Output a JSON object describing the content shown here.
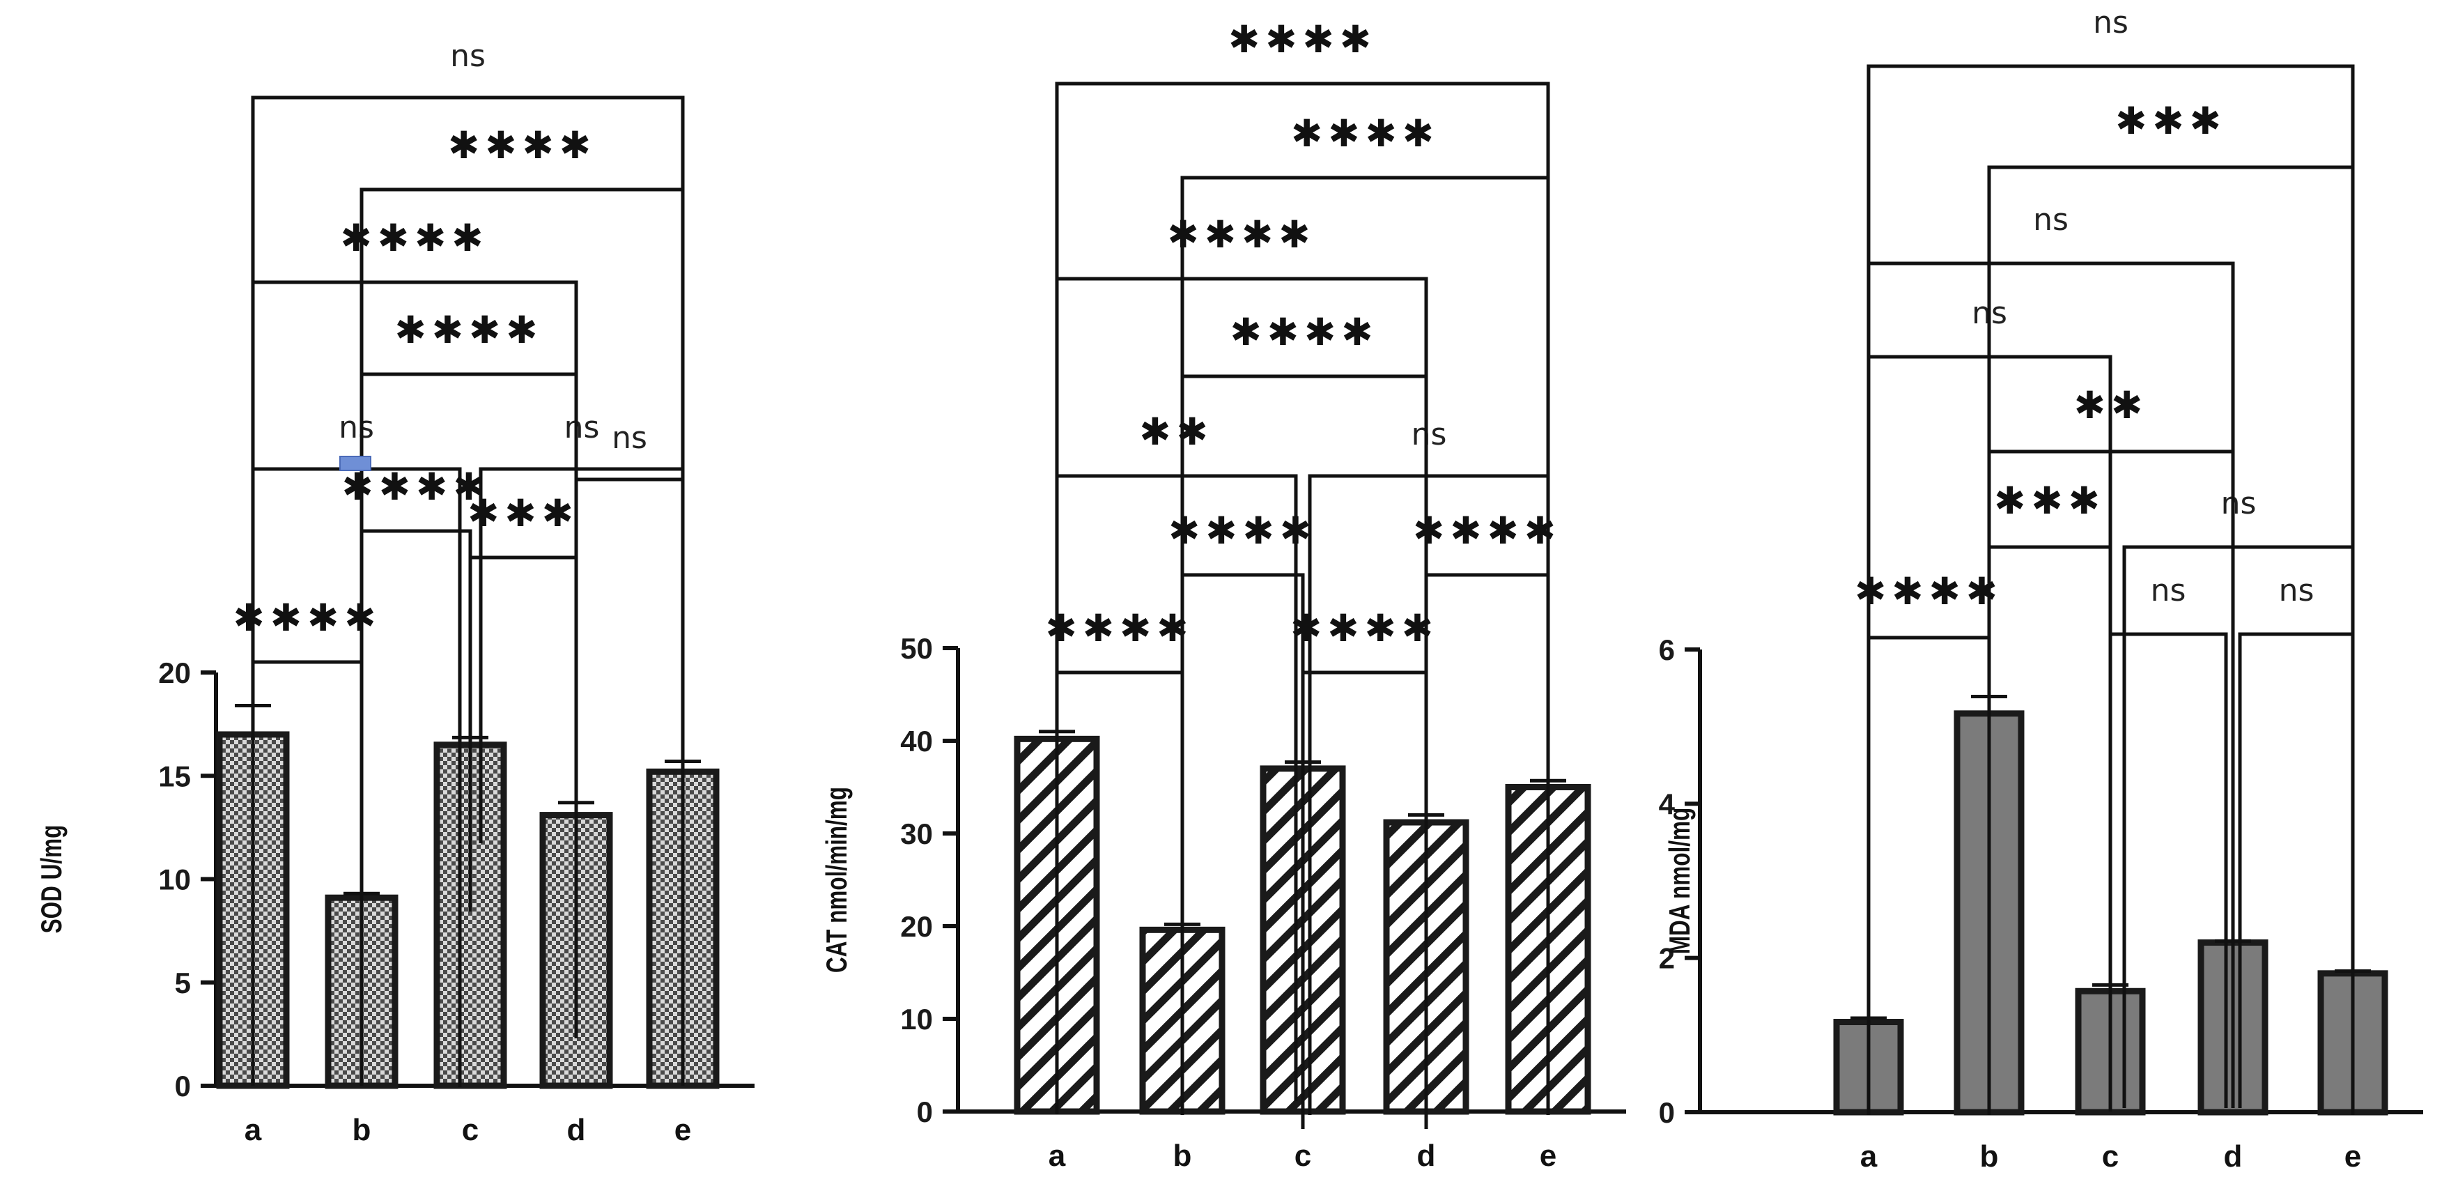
{
  "chart_data": [
    {
      "type": "bar",
      "panel": "SOD",
      "ylabel": "SOD U/mg",
      "categories": [
        "a",
        "b",
        "c",
        "d",
        "e"
      ],
      "values": [
        17.0,
        9.1,
        16.5,
        13.1,
        15.2
      ],
      "errors": [
        1.4,
        0.2,
        0.35,
        0.6,
        0.5
      ],
      "ylim": [
        0,
        20
      ],
      "yticks": [
        0,
        5,
        10,
        15,
        20
      ],
      "pattern": "checker",
      "comparisons": [
        {
          "from": "a",
          "to": "b",
          "label": "****"
        },
        {
          "from": "c",
          "to": "d",
          "label": "***"
        },
        {
          "from": "b",
          "to": "c",
          "label": "****"
        },
        {
          "from": "d",
          "to": "e",
          "label": "ns"
        },
        {
          "from": "a",
          "to": "c",
          "label": "ns"
        },
        {
          "from": "c",
          "to": "e",
          "label": "ns"
        },
        {
          "from": "b",
          "to": "d",
          "label": "****"
        },
        {
          "from": "a",
          "to": "d",
          "label": "****"
        },
        {
          "from": "b",
          "to": "e",
          "label": "****"
        },
        {
          "from": "a",
          "to": "e",
          "label": "ns"
        }
      ]
    },
    {
      "type": "bar",
      "panel": "CAT",
      "ylabel": "CAT nmol/min/mg",
      "categories": [
        "a",
        "b",
        "c",
        "d",
        "e"
      ],
      "values": [
        40.2,
        19.6,
        37.0,
        31.2,
        35.0
      ],
      "errors": [
        0.8,
        0.6,
        0.7,
        0.8,
        0.7
      ],
      "ylim": [
        0,
        50
      ],
      "yticks": [
        0,
        10,
        20,
        30,
        40,
        50
      ],
      "pattern": "diagonal",
      "comparisons": [
        {
          "from": "a",
          "to": "b",
          "label": "****"
        },
        {
          "from": "c",
          "to": "d",
          "label": "****"
        },
        {
          "from": "b",
          "to": "c",
          "label": "****"
        },
        {
          "from": "d",
          "to": "e",
          "label": "****"
        },
        {
          "from": "a",
          "to": "c",
          "label": "**"
        },
        {
          "from": "c",
          "to": "e",
          "label": "ns"
        },
        {
          "from": "b",
          "to": "d",
          "label": "****"
        },
        {
          "from": "a",
          "to": "d",
          "label": "****"
        },
        {
          "from": "b",
          "to": "e",
          "label": "****"
        },
        {
          "from": "a",
          "to": "e",
          "label": "****"
        }
      ]
    },
    {
      "type": "bar",
      "panel": "MDA",
      "ylabel": "MDA nmol/mg",
      "categories": [
        "a",
        "b",
        "c",
        "d",
        "e"
      ],
      "values": [
        1.17,
        5.17,
        1.57,
        2.2,
        1.8
      ],
      "errors": [
        0.05,
        0.22,
        0.08,
        0.02,
        0.03
      ],
      "ylim": [
        0,
        6
      ],
      "yticks": [
        0,
        2,
        4,
        6
      ],
      "pattern": "solid",
      "comparisons": [
        {
          "from": "a",
          "to": "b",
          "label": "****"
        },
        {
          "from": "c",
          "to": "d",
          "label": "ns"
        },
        {
          "from": "d",
          "to": "e",
          "label": "ns"
        },
        {
          "from": "b",
          "to": "c",
          "label": "***"
        },
        {
          "from": "c",
          "to": "e",
          "label": "ns"
        },
        {
          "from": "b",
          "to": "d",
          "label": "**"
        },
        {
          "from": "a",
          "to": "c",
          "label": "ns"
        },
        {
          "from": "a",
          "to": "d",
          "label": "ns"
        },
        {
          "from": "b",
          "to": "e",
          "label": "***"
        },
        {
          "from": "a",
          "to": "e",
          "label": "ns"
        }
      ]
    }
  ],
  "colors": {
    "axis": "#111111",
    "bar_edge": "#1a1a1a",
    "checker_fill": "#6b6b6b",
    "diagonal_fill": "#ffffff",
    "solid_fill": "#7b7b7b",
    "bracket": "#111111",
    "artifact": "#6f8fd6"
  }
}
